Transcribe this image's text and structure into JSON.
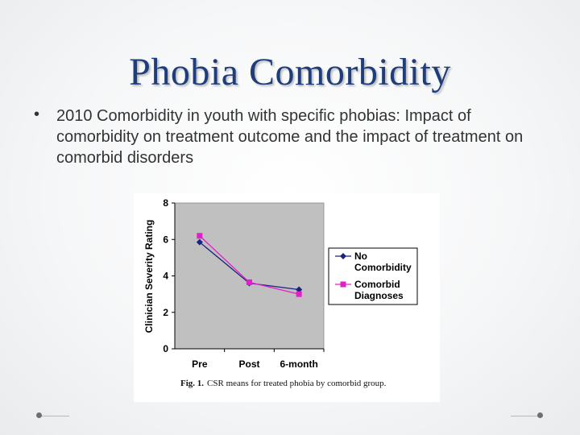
{
  "slide": {
    "title": "Phobia Comorbidity",
    "bullet": "2010 Comorbidity in youth with specific phobias: Impact of comorbidity on treatment outcome and the impact of treatment on comorbid disorders",
    "bullet_symbol": "•"
  },
  "chart_data": {
    "type": "line",
    "title": "",
    "caption_label": "Fig. 1.",
    "caption_text": "CSR means for treated phobia by comorbid group.",
    "xlabel": "",
    "ylabel": "Clinician Severity Rating",
    "categories": [
      "Pre",
      "Post",
      "6-month"
    ],
    "ylim": [
      0,
      8
    ],
    "yticks": [
      "0",
      "2",
      "4",
      "6",
      "8"
    ],
    "grid": false,
    "legend_position": "right",
    "series": [
      {
        "name": "No Comorbidity",
        "legend_lines": [
          "No",
          "Comorbidity"
        ],
        "values": [
          5.85,
          3.6,
          3.25
        ],
        "color": "#1a237e",
        "marker": "diamond"
      },
      {
        "name": "Comorbid Diagnoses",
        "legend_lines": [
          "Comorbid",
          "Diagnoses"
        ],
        "values": [
          6.2,
          3.65,
          3.0
        ],
        "color": "#e020c8",
        "marker": "square"
      }
    ],
    "plot_background": "#c0c0c0"
  }
}
